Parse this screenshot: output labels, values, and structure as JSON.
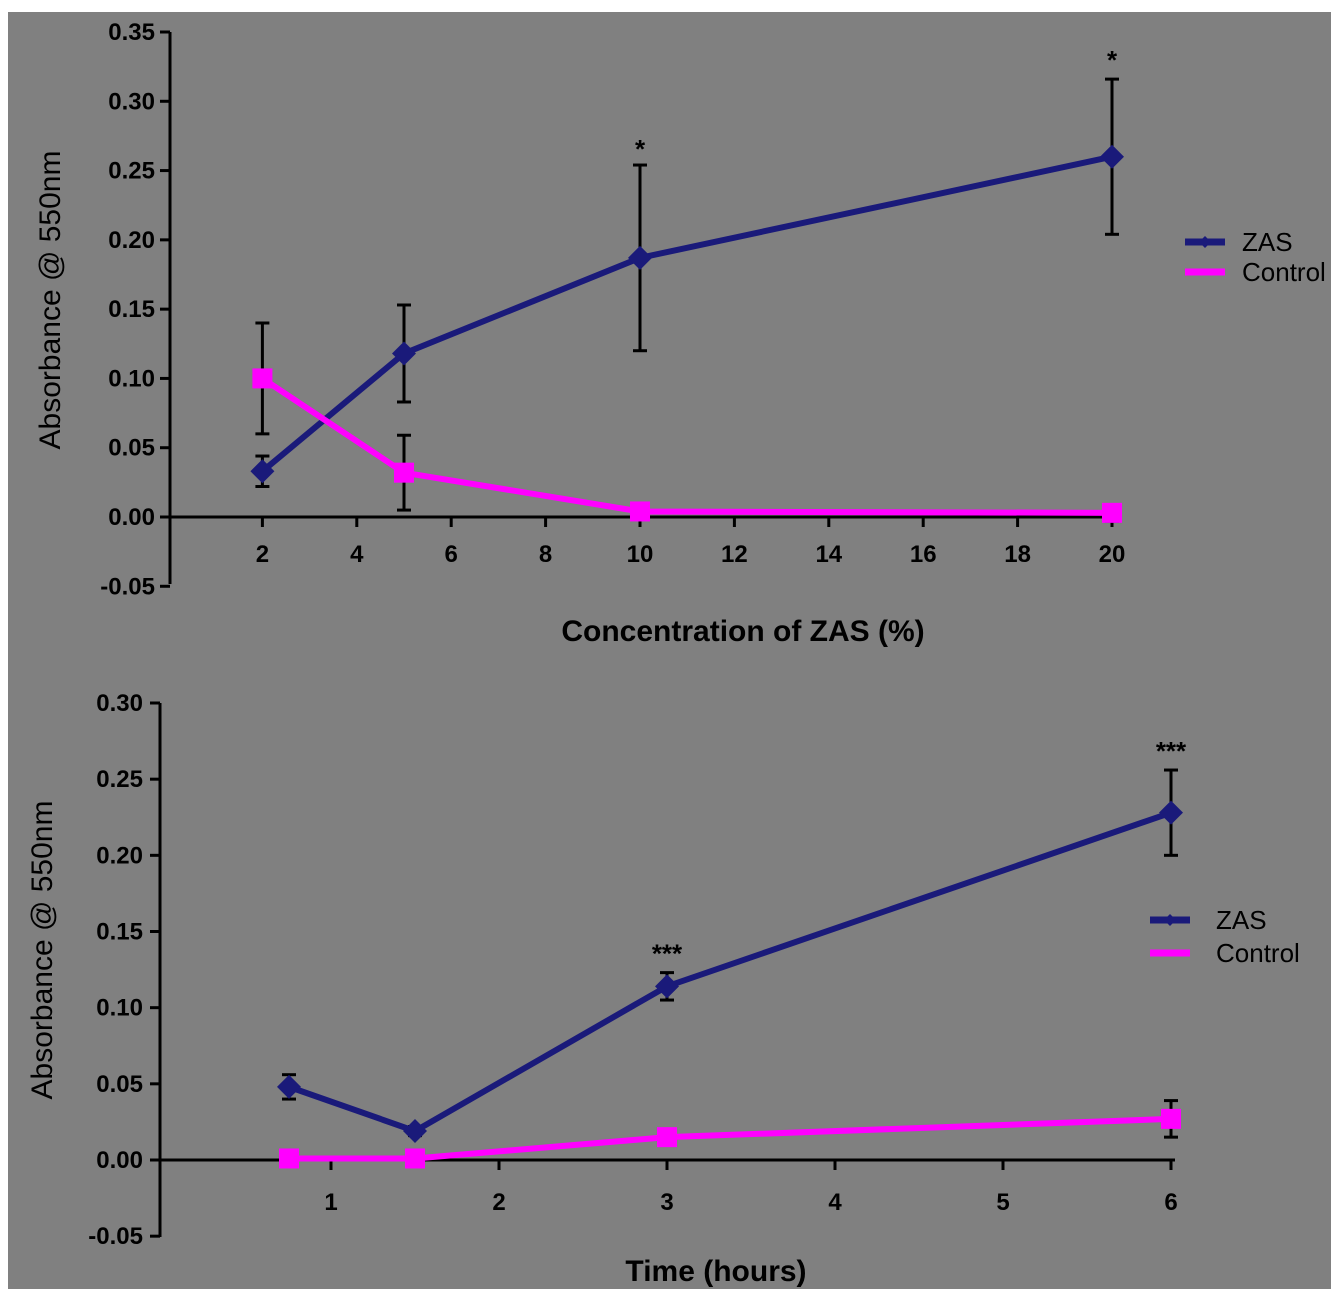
{
  "chart_data": [
    {
      "type": "line",
      "xlabel": "Concentration of ZAS (%)",
      "ylabel": "Absorbance @ 550nm",
      "xlim": [
        0,
        20
      ],
      "ylim": [
        -0.05,
        0.35
      ],
      "x_ticks": [
        2,
        4,
        6,
        8,
        10,
        12,
        14,
        16,
        18,
        20
      ],
      "y_ticks": [
        -0.05,
        0.0,
        0.05,
        0.1,
        0.15,
        0.2,
        0.25,
        0.3,
        0.35
      ],
      "y_tick_labels": [
        "-0.05",
        "0.00",
        "0.05",
        "0.10",
        "0.15",
        "0.20",
        "0.25",
        "0.30",
        "0.35"
      ],
      "grid": false,
      "legend_position": "right",
      "series": [
        {
          "name": "ZAS",
          "color": "#1a1a7a",
          "marker": "diamond",
          "x": [
            2,
            5,
            10,
            20
          ],
          "y": [
            0.033,
            0.118,
            0.187,
            0.26
          ],
          "err": [
            0.011,
            0.035,
            0.067,
            0.056
          ]
        },
        {
          "name": "Control",
          "color": "#ff00ff",
          "marker": "square",
          "x": [
            2,
            5,
            10,
            20
          ],
          "y": [
            0.1,
            0.032,
            0.004,
            0.003
          ],
          "err": [
            0.04,
            0.027,
            0.002,
            0.006
          ]
        }
      ],
      "annotations": [
        {
          "x": 10,
          "y": 0.252,
          "text": "*"
        },
        {
          "x": 20,
          "y": 0.316,
          "text": "*"
        }
      ]
    },
    {
      "type": "line",
      "xlabel": "Time (hours)",
      "ylabel": "Absorbance @ 550nm",
      "x_categories": [
        "1",
        "2",
        "3",
        "4",
        "5",
        "6"
      ],
      "ylim": [
        -0.05,
        0.3
      ],
      "y_ticks": [
        -0.05,
        0.0,
        0.05,
        0.1,
        0.15,
        0.2,
        0.25,
        0.3
      ],
      "y_tick_labels": [
        "-0.05",
        "0.00",
        "0.05",
        "0.10",
        "0.15",
        "0.20",
        "0.25",
        "0.30"
      ],
      "grid": false,
      "legend_position": "right",
      "series": [
        {
          "name": "ZAS",
          "color": "#1a1a7a",
          "marker": "diamond",
          "x": [
            0.75,
            1.5,
            3,
            6
          ],
          "y": [
            0.048,
            0.019,
            0.114,
            0.228
          ],
          "err": [
            0.008,
            0.003,
            0.009,
            0.028
          ]
        },
        {
          "name": "Control",
          "color": "#ff00ff",
          "marker": "square",
          "x": [
            0.75,
            1.5,
            3,
            6
          ],
          "y": [
            0.001,
            0.001,
            0.015,
            0.027
          ],
          "err": [
            0.002,
            0.002,
            0.003,
            0.012
          ]
        }
      ],
      "annotations": [
        {
          "x": 3,
          "y": 0.123,
          "text": "***"
        },
        {
          "x": 6,
          "y": 0.256,
          "text": "***"
        }
      ]
    }
  ]
}
